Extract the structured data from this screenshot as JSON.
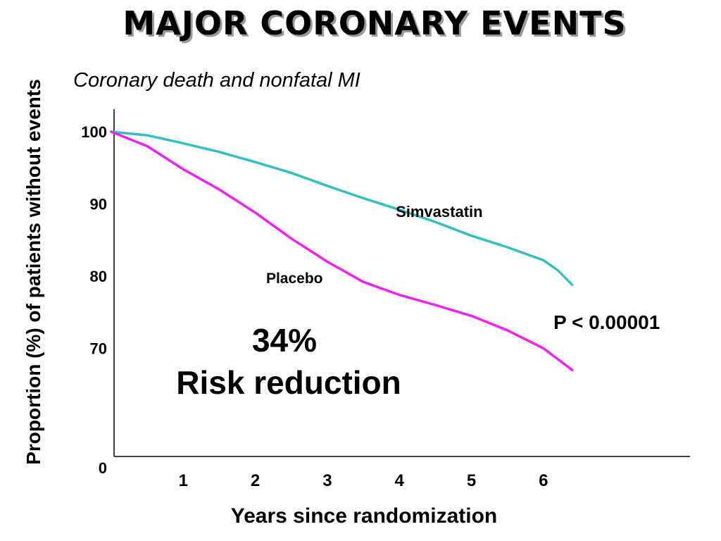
{
  "title": "MAJOR CORONARY EVENTS",
  "chart_data": {
    "type": "line",
    "title": "MAJOR CORONARY EVENTS",
    "subtitle": "Coronary death and nonfatal MI",
    "xlabel": "Years since randomization",
    "ylabel": "Proportion (%) of patients without events",
    "x_ticks": [
      "1",
      "2",
      "3",
      "4",
      "5",
      "6"
    ],
    "y_ticks": [
      "0",
      "70",
      "80",
      "90",
      "100"
    ],
    "xlim": [
      0,
      8
    ],
    "ylim_note": "broken axis: 0 then 70–100",
    "series": [
      {
        "name": "Simvastatin",
        "color": "#33bfbf",
        "x": [
          0,
          0.5,
          1,
          1.5,
          2,
          2.5,
          3,
          3.5,
          4,
          4.5,
          5,
          5.5,
          6,
          6.2,
          6.4
        ],
        "y": [
          100,
          99.5,
          98.4,
          97.2,
          95.8,
          94.3,
          92.5,
          90.8,
          89.2,
          87.5,
          85.6,
          84.0,
          82.2,
          80.8,
          78.8
        ]
      },
      {
        "name": "Placebo",
        "color": "#ee22ee",
        "x": [
          0,
          0.5,
          1,
          1.5,
          2,
          2.5,
          3,
          3.5,
          4,
          4.5,
          5,
          5.5,
          6,
          6.2,
          6.4
        ],
        "y": [
          100,
          98.0,
          94.8,
          92.0,
          88.8,
          85.2,
          82.0,
          79.2,
          77.4,
          76.0,
          74.5,
          72.5,
          70.0,
          68.5,
          67.0
        ]
      }
    ],
    "annotations": {
      "reduction_pct": "34%",
      "reduction_text": "Risk reduction",
      "p_value": "P < 0.00001"
    }
  }
}
